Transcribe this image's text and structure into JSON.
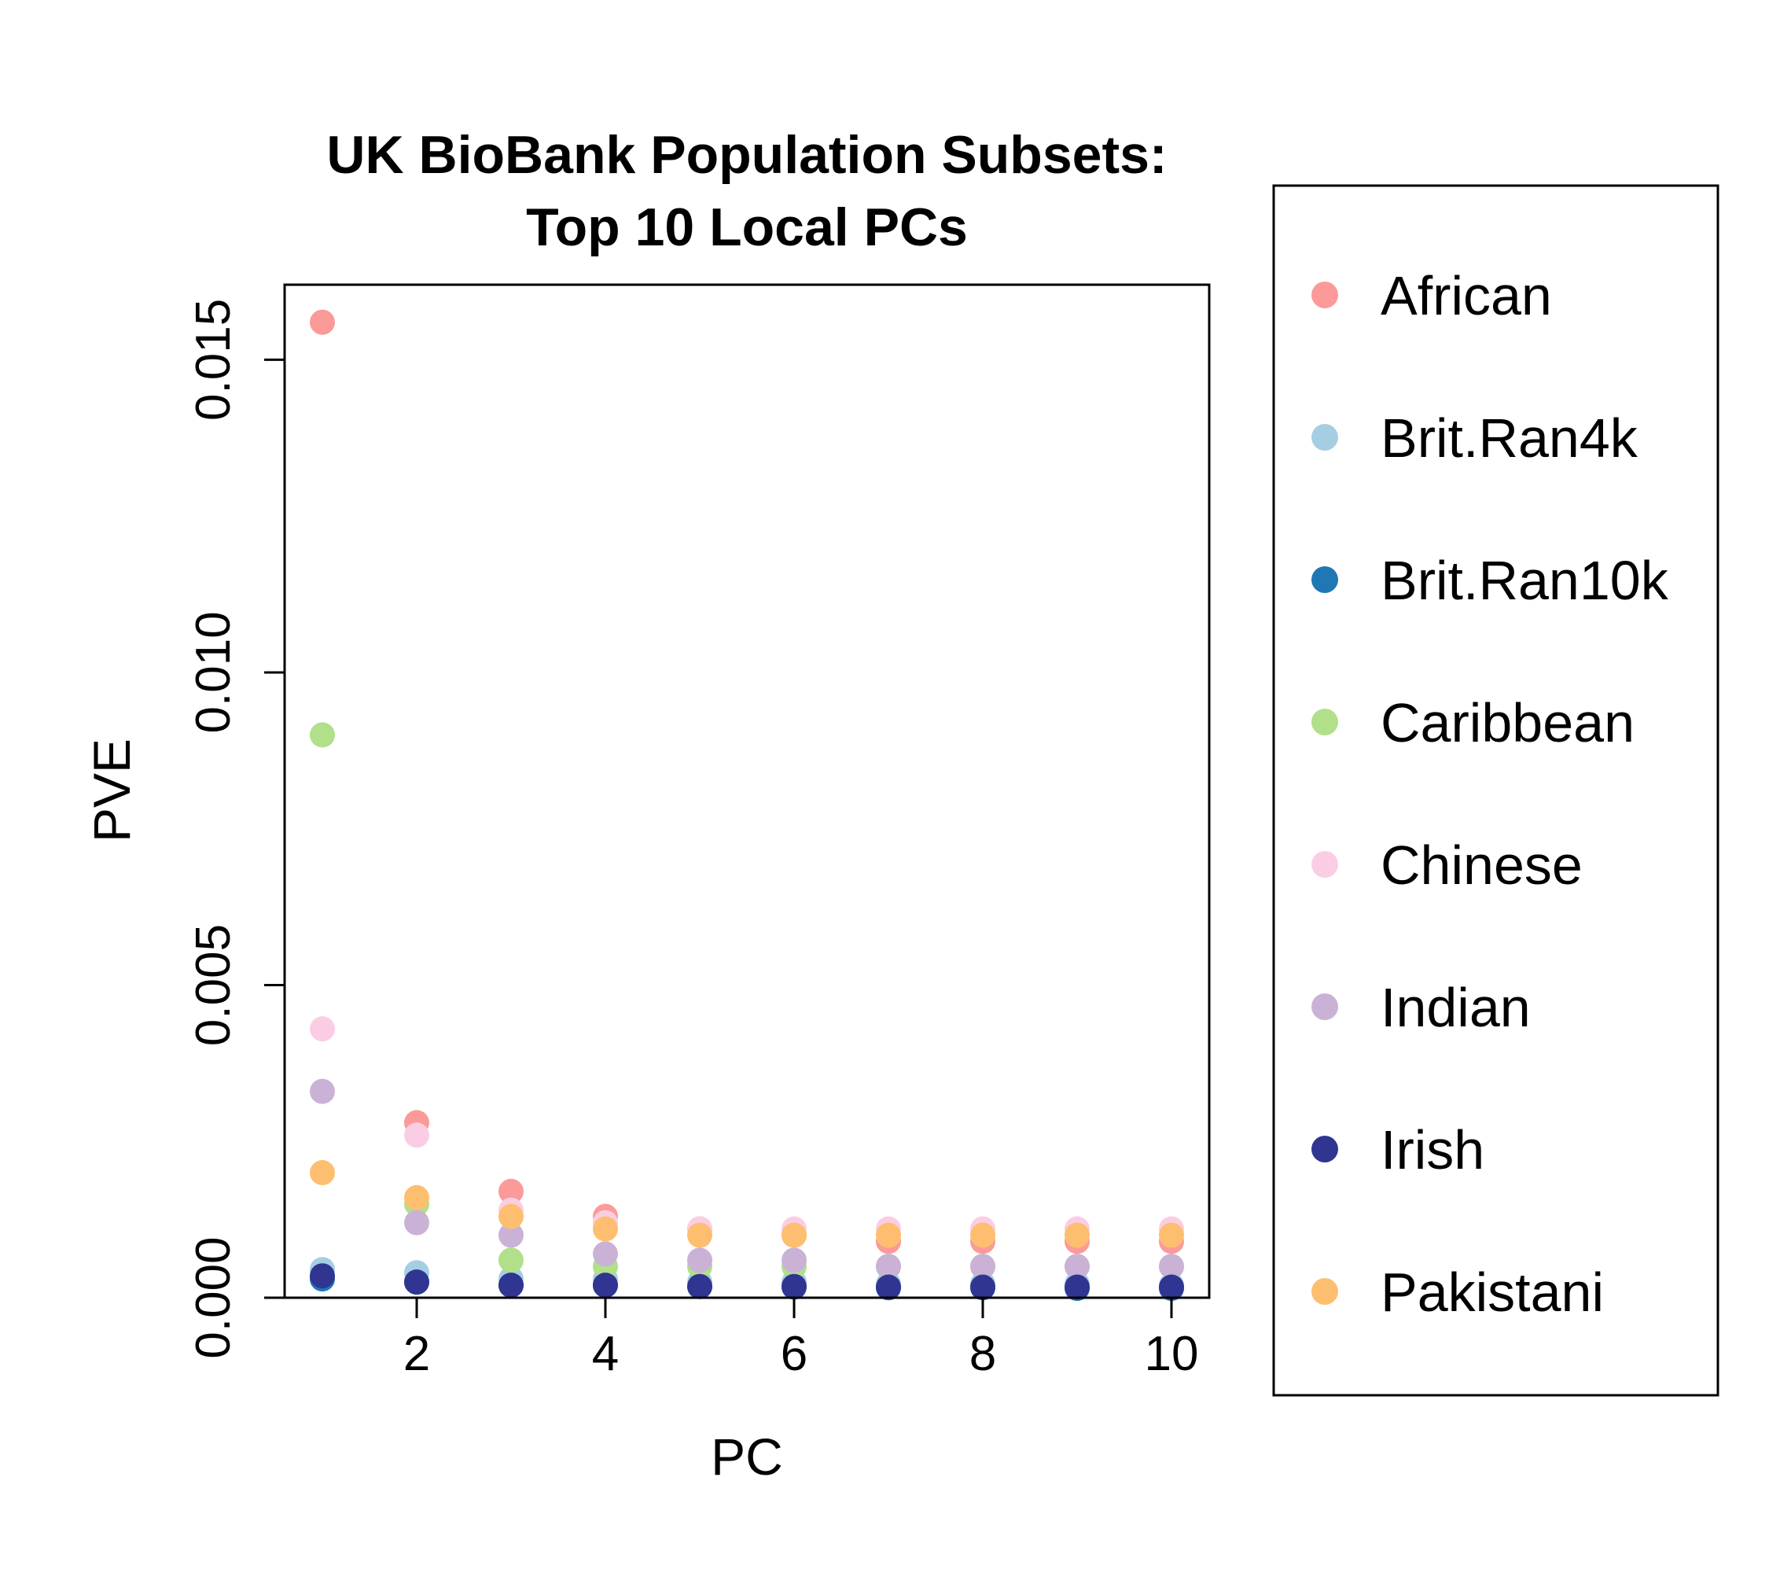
{
  "chart_data": {
    "type": "scatter",
    "title": "UK BioBank Population Subsets:",
    "subtitle": "Top 10 Local PCs",
    "xlabel": "PC",
    "ylabel": "PVE",
    "xlim": [
      0.6,
      10.4
    ],
    "ylim": [
      0.0,
      0.0162
    ],
    "x_ticks": [
      2,
      4,
      6,
      8,
      10
    ],
    "x_tick_labels": [
      "2",
      "4",
      "6",
      "8",
      "10"
    ],
    "y_ticks": [
      0.0,
      0.005,
      0.01,
      0.015
    ],
    "y_tick_labels": [
      "0.000",
      "0.005",
      "0.010",
      "0.015"
    ],
    "grid": false,
    "legend_position": "right-outside",
    "x": [
      1,
      2,
      3,
      4,
      5,
      6,
      7,
      8,
      9,
      10
    ],
    "series": [
      {
        "name": "African",
        "color": "#FB9A99",
        "values": [
          0.0156,
          0.0028,
          0.0017,
          0.0013,
          0.0011,
          0.001,
          0.0009,
          0.0009,
          0.0009,
          0.0009
        ]
      },
      {
        "name": "Brit.Ran4k",
        "color": "#A6CEE3",
        "values": [
          0.00045,
          0.0004,
          0.0003,
          0.0003,
          0.00025,
          0.00025,
          0.00022,
          0.00022,
          0.00022,
          0.0002
        ]
      },
      {
        "name": "Brit.Ran10k",
        "color": "#1F78B4",
        "values": [
          0.0003,
          0.00025,
          0.0002,
          0.0002,
          0.00018,
          0.00017,
          0.00016,
          0.00016,
          0.00015,
          0.00015
        ]
      },
      {
        "name": "Caribbean",
        "color": "#B2DF8A",
        "values": [
          0.009,
          0.0015,
          0.0006,
          0.0005,
          0.0005,
          0.0005,
          0.0005,
          0.0005,
          0.0005,
          0.0005
        ]
      },
      {
        "name": "Chinese",
        "color": "#FBCDE4",
        "values": [
          0.0043,
          0.0026,
          0.0014,
          0.0012,
          0.0011,
          0.0011,
          0.0011,
          0.0011,
          0.0011,
          0.0011
        ]
      },
      {
        "name": "Indian",
        "color": "#CAB2D6",
        "values": [
          0.0033,
          0.0012,
          0.001,
          0.0007,
          0.0006,
          0.0006,
          0.0005,
          0.0005,
          0.0005,
          0.0005
        ]
      },
      {
        "name": "Irish",
        "color": "#303592",
        "values": [
          0.00035,
          0.00025,
          0.0002,
          0.0002,
          0.00018,
          0.00018,
          0.00017,
          0.00017,
          0.00017,
          0.00017
        ]
      },
      {
        "name": "Pakistani",
        "color": "#FDBF6F",
        "values": [
          0.002,
          0.0016,
          0.0013,
          0.0011,
          0.001,
          0.001,
          0.001,
          0.001,
          0.001,
          0.001
        ]
      }
    ]
  }
}
